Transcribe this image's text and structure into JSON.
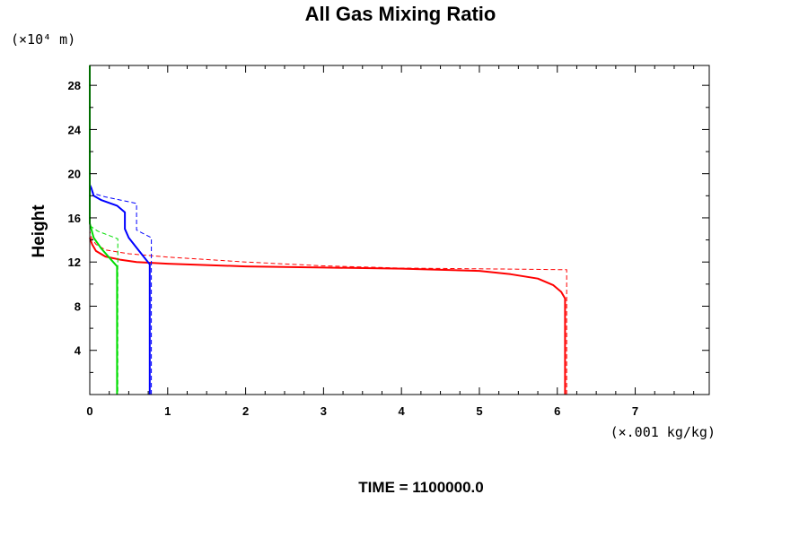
{
  "chart_data": {
    "type": "line",
    "title": "All Gas Mixing Ratio",
    "ylabel": "Height",
    "y_unit_label": "(×10⁴ m)",
    "x_unit_label": "(×.001 kg/kg)",
    "footer": "TIME = 1100000.0",
    "xlim": [
      0,
      7.95
    ],
    "ylim": [
      0,
      29.8
    ],
    "xticks": [
      0,
      1,
      2,
      3,
      4,
      5,
      6,
      7
    ],
    "yticks": [
      4,
      8,
      12,
      16,
      20,
      24,
      28
    ],
    "grid": false,
    "series": [
      {
        "color": "#ff0000",
        "style": "solid",
        "points": [
          [
            6.1,
            0
          ],
          [
            6.1,
            8.7
          ],
          [
            6.05,
            9.3
          ],
          [
            5.95,
            9.9
          ],
          [
            5.75,
            10.5
          ],
          [
            5.4,
            10.9
          ],
          [
            5,
            11.2
          ],
          [
            4,
            11.4
          ],
          [
            3,
            11.5
          ],
          [
            2,
            11.6
          ],
          [
            1,
            11.85
          ],
          [
            0.6,
            12.0
          ],
          [
            0.4,
            12.2
          ],
          [
            0.2,
            12.5
          ],
          [
            0.08,
            13.0
          ],
          [
            0.03,
            13.6
          ],
          [
            0,
            14.2
          ]
        ]
      },
      {
        "color": "#ff0000",
        "style": "dashed",
        "points": [
          [
            6.12,
            0
          ],
          [
            6.12,
            11.3
          ],
          [
            5.5,
            11.35
          ],
          [
            4,
            11.45
          ],
          [
            3,
            11.65
          ],
          [
            2,
            12.0
          ],
          [
            1,
            12.45
          ],
          [
            0.5,
            12.75
          ],
          [
            0.2,
            13.1
          ],
          [
            0.08,
            13.6
          ],
          [
            0.02,
            14.2
          ],
          [
            0,
            14.8
          ]
        ]
      },
      {
        "color": "#0000ff",
        "style": "solid",
        "points": [
          [
            0.77,
            0
          ],
          [
            0.77,
            11.8
          ],
          [
            0.7,
            12.4
          ],
          [
            0.6,
            13.3
          ],
          [
            0.5,
            14.2
          ],
          [
            0.45,
            15.0
          ],
          [
            0.45,
            16.5
          ],
          [
            0.35,
            17.1
          ],
          [
            0.15,
            17.6
          ],
          [
            0.05,
            18.0
          ],
          [
            0.02,
            18.7
          ],
          [
            0,
            19.0
          ]
        ]
      },
      {
        "color": "#0000ff",
        "style": "dashed",
        "points": [
          [
            0.79,
            0
          ],
          [
            0.79,
            14.2
          ],
          [
            0.68,
            14.6
          ],
          [
            0.6,
            14.9
          ],
          [
            0.6,
            17.3
          ],
          [
            0.4,
            17.6
          ],
          [
            0.2,
            17.9
          ],
          [
            0.05,
            18.2
          ],
          [
            0,
            19.0
          ]
        ]
      },
      {
        "color": "#00dd00",
        "style": "solid",
        "points": [
          [
            0,
            29.8
          ],
          [
            0,
            15.5
          ],
          [
            0.05,
            14.2
          ],
          [
            0.15,
            13.2
          ],
          [
            0.25,
            12.4
          ],
          [
            0.35,
            11.6
          ],
          [
            0.35,
            0
          ]
        ]
      },
      {
        "color": "#00dd00",
        "style": "dashed",
        "points": [
          [
            0,
            15.3
          ],
          [
            0.1,
            14.8
          ],
          [
            0.25,
            14.4
          ],
          [
            0.36,
            14.1
          ],
          [
            0.36,
            0
          ]
        ]
      }
    ]
  }
}
